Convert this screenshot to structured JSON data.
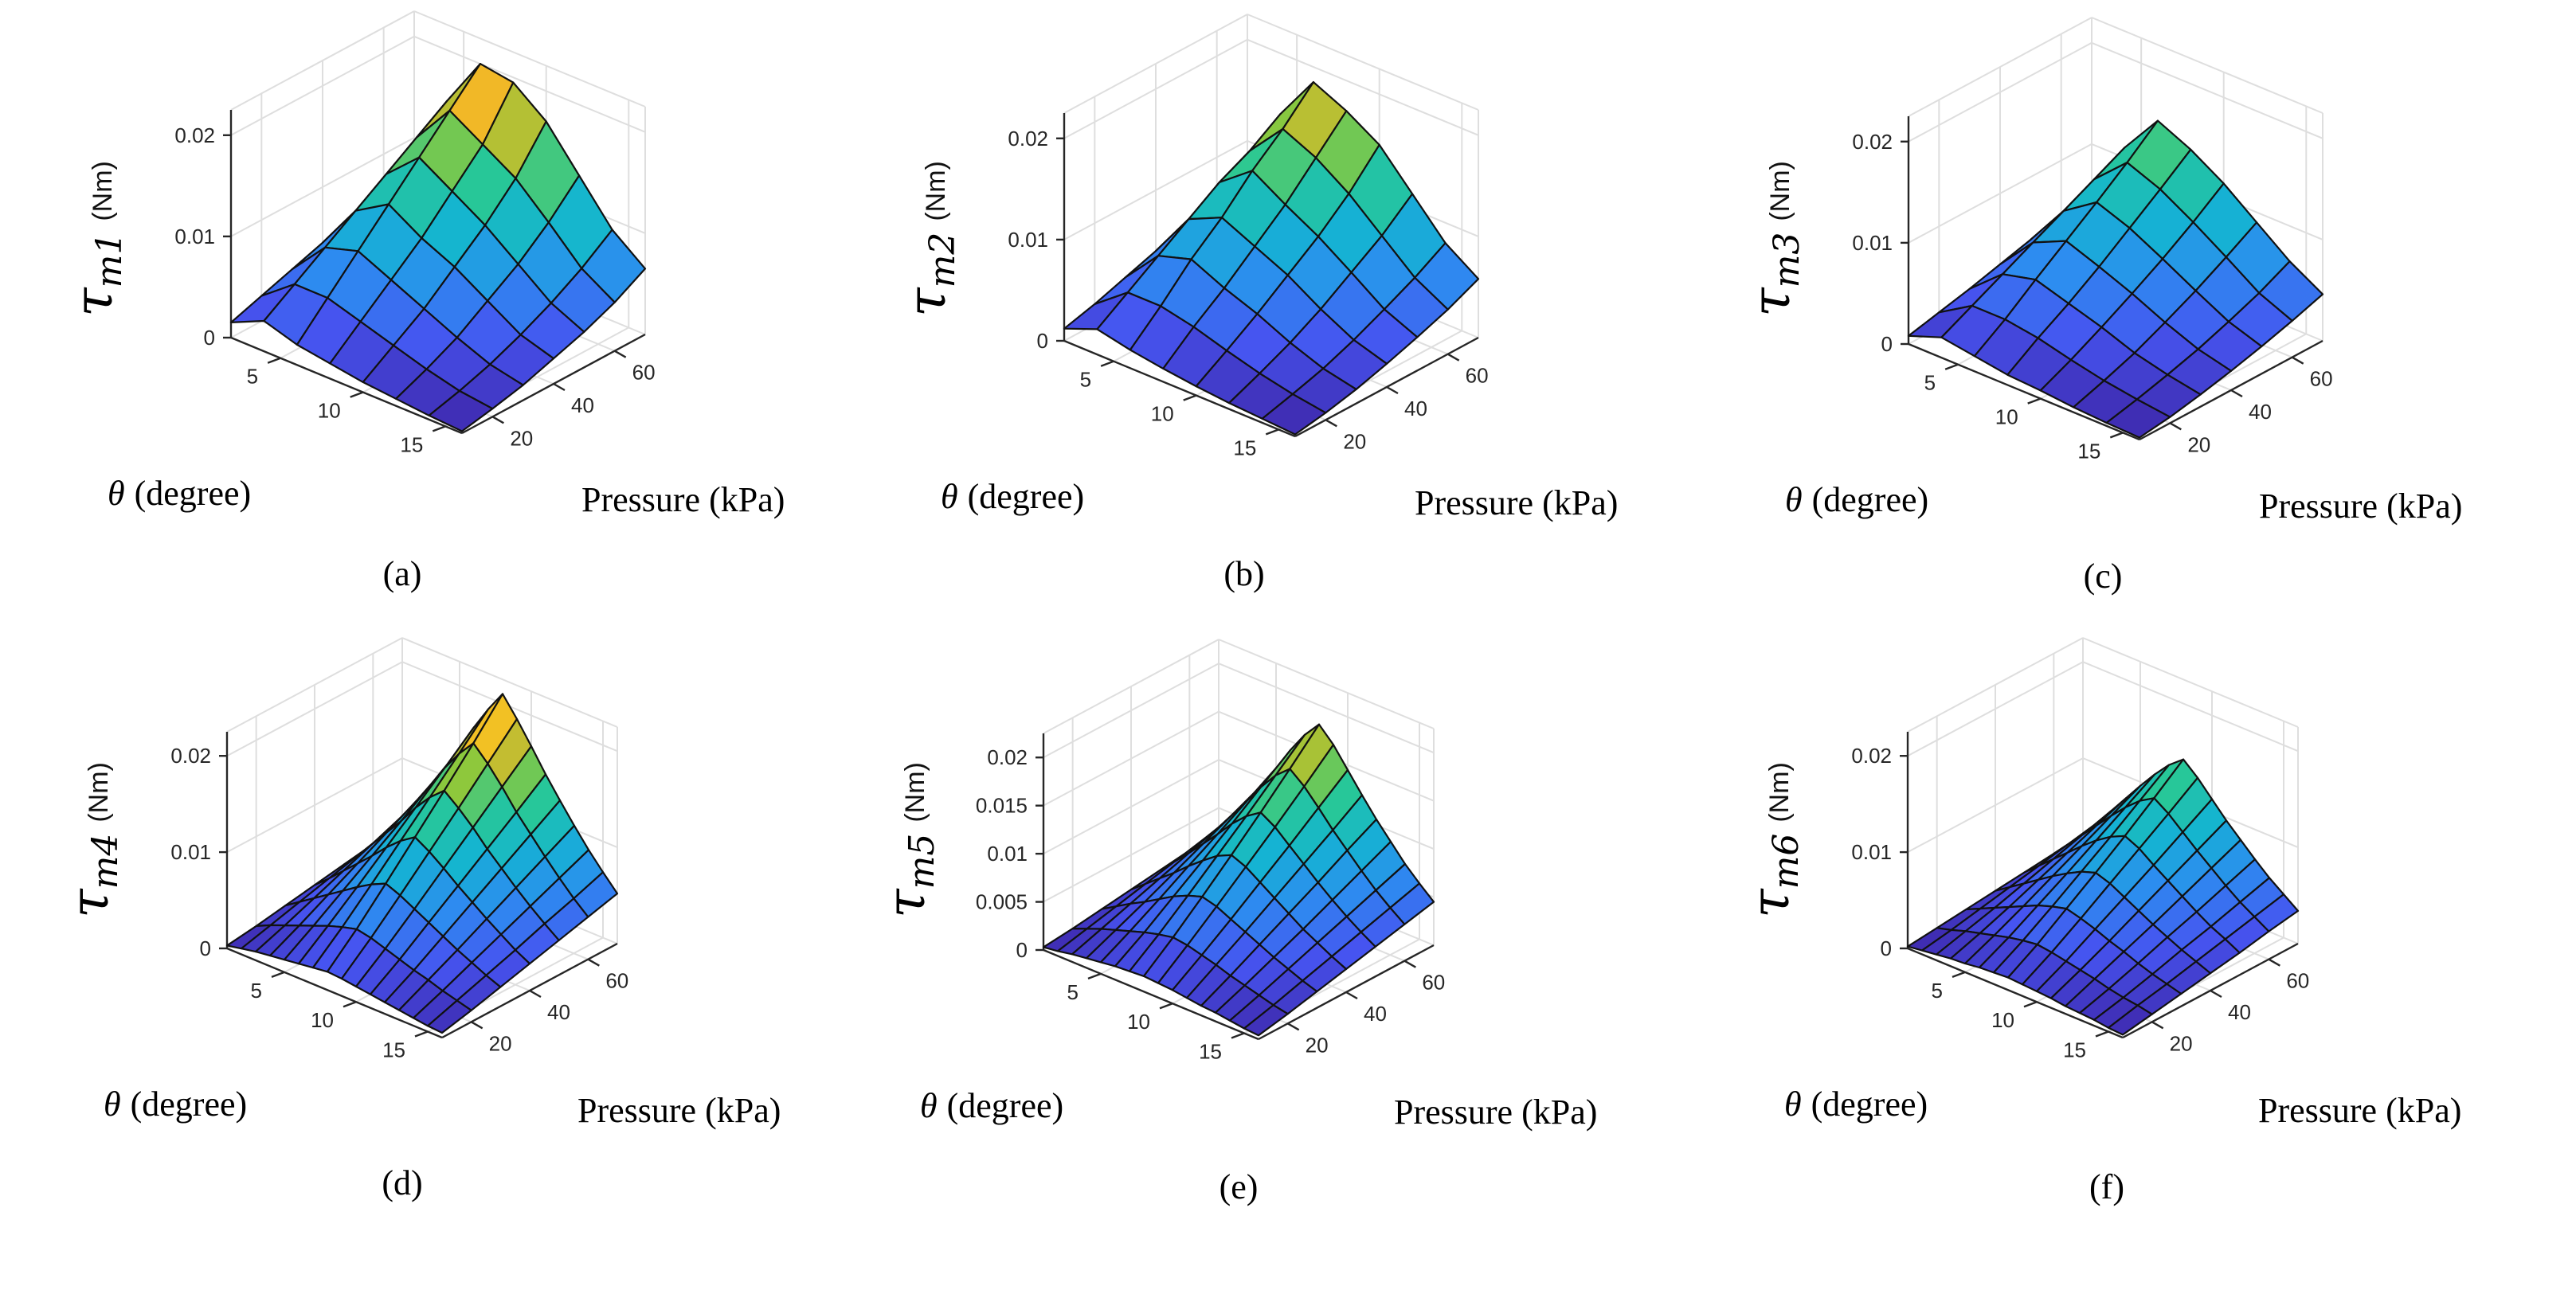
{
  "chart_data": [
    {
      "type": "surface",
      "panel": "a",
      "caption": "(a)",
      "zlabel": {
        "sym": "τ",
        "sub": "m1",
        "unit": "(Nm)"
      },
      "xlabel": {
        "sym": "θ",
        "text": "(degree)"
      },
      "ylabel": "Pressure (kPa)",
      "theta": [
        2,
        4,
        6,
        8,
        10,
        12,
        14,
        16
      ],
      "pressure": [
        10,
        20,
        30,
        40,
        50,
        60,
        70
      ],
      "zlim": [
        0,
        0.0225
      ],
      "theta_ticks": [
        5,
        10,
        15
      ],
      "pressure_ticks": [
        20,
        40,
        60
      ],
      "z_ticks": [
        {
          "v": 0,
          "label": "0"
        },
        {
          "v": 0.01,
          "label": "0.01"
        },
        {
          "v": 0.02,
          "label": "0.02"
        }
      ],
      "z": [
        [
          0.0015,
          0.0025,
          0.0035,
          0.0045,
          0.0055,
          0.0065,
          0.0075
        ],
        [
          0.003,
          0.005,
          0.007,
          0.009,
          0.011,
          0.013,
          0.015
        ],
        [
          0.002,
          0.005,
          0.008,
          0.011,
          0.014,
          0.017,
          0.02
        ],
        [
          0.0015,
          0.004,
          0.0065,
          0.009,
          0.012,
          0.015,
          0.0195
        ],
        [
          0.001,
          0.003,
          0.005,
          0.0075,
          0.01,
          0.013,
          0.017
        ],
        [
          0.0007,
          0.002,
          0.0035,
          0.0055,
          0.0075,
          0.01,
          0.013
        ],
        [
          0.0004,
          0.0012,
          0.0022,
          0.0035,
          0.005,
          0.0068,
          0.009
        ],
        [
          0.0002,
          0.0008,
          0.0015,
          0.0025,
          0.0035,
          0.0048,
          0.0065
        ]
      ]
    },
    {
      "type": "surface",
      "panel": "b",
      "caption": "(b)",
      "zlabel": {
        "sym": "τ",
        "sub": "m2",
        "unit": "(Nm)"
      },
      "xlabel": {
        "sym": "θ",
        "text": "(degree)"
      },
      "ylabel": "Pressure (kPa)",
      "theta": [
        2,
        4,
        6,
        8,
        10,
        12,
        14,
        16
      ],
      "pressure": [
        10,
        20,
        30,
        40,
        50,
        60,
        70
      ],
      "zlim": [
        0,
        0.0225
      ],
      "theta_ticks": [
        5,
        10,
        15
      ],
      "pressure_ticks": [
        20,
        40,
        60
      ],
      "z_ticks": [
        {
          "v": 0,
          "label": "0"
        },
        {
          "v": 0.01,
          "label": "0.01"
        },
        {
          "v": 0.02,
          "label": "0.02"
        }
      ],
      "z": [
        [
          0.0012,
          0.002,
          0.003,
          0.004,
          0.005,
          0.006,
          0.007
        ],
        [
          0.0025,
          0.0045,
          0.0065,
          0.0085,
          0.0105,
          0.012,
          0.014
        ],
        [
          0.0018,
          0.0045,
          0.0075,
          0.01,
          0.013,
          0.0155,
          0.0185
        ],
        [
          0.0013,
          0.0038,
          0.006,
          0.0085,
          0.011,
          0.014,
          0.017
        ],
        [
          0.0009,
          0.0028,
          0.0048,
          0.007,
          0.0092,
          0.0118,
          0.015
        ],
        [
          0.0006,
          0.0019,
          0.0033,
          0.005,
          0.007,
          0.009,
          0.0115
        ],
        [
          0.0004,
          0.0012,
          0.0021,
          0.0033,
          0.0047,
          0.0062,
          0.008
        ],
        [
          0.0002,
          0.0007,
          0.0014,
          0.0023,
          0.0033,
          0.0044,
          0.0058
        ]
      ]
    },
    {
      "type": "surface",
      "panel": "c",
      "caption": "(c)",
      "zlabel": {
        "sym": "τ",
        "sub": "m3",
        "unit": "(Nm)"
      },
      "xlabel": {
        "sym": "θ",
        "text": "(degree)"
      },
      "ylabel": "Pressure (kPa)",
      "theta": [
        2,
        4,
        6,
        8,
        10,
        12,
        14,
        16
      ],
      "pressure": [
        10,
        20,
        30,
        40,
        50,
        60,
        70
      ],
      "zlim": [
        0,
        0.0225
      ],
      "theta_ticks": [
        5,
        10,
        15
      ],
      "pressure_ticks": [
        20,
        40,
        60
      ],
      "z_ticks": [
        {
          "v": 0,
          "label": "0"
        },
        {
          "v": 0.01,
          "label": "0.01"
        },
        {
          "v": 0.02,
          "label": "0.02"
        }
      ],
      "z": [
        [
          0.0008,
          0.0015,
          0.0022,
          0.003,
          0.0038,
          0.0045,
          0.0052
        ],
        [
          0.002,
          0.0035,
          0.005,
          0.0065,
          0.008,
          0.0095,
          0.011
        ],
        [
          0.0015,
          0.0035,
          0.0058,
          0.008,
          0.0102,
          0.0125,
          0.015
        ],
        [
          0.001,
          0.003,
          0.0048,
          0.0068,
          0.009,
          0.0112,
          0.0135
        ],
        [
          0.0008,
          0.0022,
          0.0038,
          0.0055,
          0.0073,
          0.0093,
          0.0115
        ],
        [
          0.0005,
          0.0015,
          0.0026,
          0.004,
          0.0055,
          0.0072,
          0.009
        ],
        [
          0.0003,
          0.001,
          0.0018,
          0.0027,
          0.0038,
          0.005,
          0.0065
        ],
        [
          0.0002,
          0.0006,
          0.0012,
          0.0019,
          0.0027,
          0.0036,
          0.0046
        ]
      ]
    },
    {
      "type": "surface",
      "panel": "d",
      "caption": "(d)",
      "zlabel": {
        "sym": "τ",
        "sub": "m4",
        "unit": "(Nm)"
      },
      "xlabel": {
        "sym": "θ",
        "text": "(degree)"
      },
      "ylabel": "Pressure (kPa)",
      "theta": [
        1,
        2,
        3,
        4,
        5,
        6,
        7,
        8,
        9,
        10,
        11,
        12,
        13,
        14,
        15,
        16
      ],
      "pressure": [
        10,
        20,
        30,
        40,
        50,
        60,
        70
      ],
      "zlim": [
        0,
        0.0225
      ],
      "theta_ticks": [
        5,
        10,
        15
      ],
      "pressure_ticks": [
        20,
        40,
        60
      ],
      "z_ticks": [
        {
          "v": 0,
          "label": "0"
        },
        {
          "v": 0.01,
          "label": "0.01"
        },
        {
          "v": 0.02,
          "label": "0.02"
        }
      ],
      "z": [
        [
          0.0003,
          0.0007,
          0.0012,
          0.0017,
          0.0022,
          0.0027,
          0.0032
        ],
        [
          0.0006,
          0.0014,
          0.0022,
          0.003,
          0.0038,
          0.0046,
          0.0054
        ],
        [
          0.0009,
          0.002,
          0.0032,
          0.0044,
          0.0056,
          0.0068,
          0.008
        ],
        [
          0.0011,
          0.0026,
          0.0042,
          0.0058,
          0.0074,
          0.009,
          0.0106
        ],
        [
          0.0013,
          0.0032,
          0.0052,
          0.0072,
          0.0092,
          0.0113,
          0.0134
        ],
        [
          0.0015,
          0.0038,
          0.0062,
          0.0087,
          0.0112,
          0.0137,
          0.0163
        ],
        [
          0.0017,
          0.0043,
          0.0071,
          0.01,
          0.0129,
          0.0158,
          0.0188
        ],
        [
          0.0019,
          0.0047,
          0.0078,
          0.011,
          0.0142,
          0.0175,
          0.021
        ],
        [
          0.0018,
          0.0044,
          0.0072,
          0.0101,
          0.013,
          0.016,
          0.019
        ],
        [
          0.0016,
          0.0039,
          0.0064,
          0.009,
          0.0116,
          0.0142,
          0.0168
        ],
        [
          0.0014,
          0.0034,
          0.0056,
          0.0078,
          0.01,
          0.0122,
          0.0145
        ],
        [
          0.0012,
          0.0029,
          0.0048,
          0.0067,
          0.0086,
          0.0105,
          0.0124
        ],
        [
          0.001,
          0.0025,
          0.004,
          0.0056,
          0.0072,
          0.0088,
          0.0104
        ],
        [
          0.0008,
          0.002,
          0.0033,
          0.0046,
          0.0059,
          0.0072,
          0.0085
        ],
        [
          0.0006,
          0.0016,
          0.0026,
          0.0036,
          0.0047,
          0.0057,
          0.0068
        ],
        [
          0.0005,
          0.0012,
          0.002,
          0.0028,
          0.0036,
          0.0044,
          0.0052
        ]
      ]
    },
    {
      "type": "surface",
      "panel": "e",
      "caption": "(e)",
      "zlabel": {
        "sym": "τ",
        "sub": "m5",
        "unit": "(Nm)"
      },
      "xlabel": {
        "sym": "θ",
        "text": "(degree)"
      },
      "ylabel": "Pressure (kPa)",
      "theta": [
        1,
        2,
        3,
        4,
        5,
        6,
        7,
        8,
        9,
        10,
        11,
        12,
        13,
        14,
        15,
        16
      ],
      "pressure": [
        10,
        20,
        30,
        40,
        50,
        60,
        70
      ],
      "zlim": [
        0,
        0.0225
      ],
      "theta_ticks": [
        5,
        10,
        15
      ],
      "pressure_ticks": [
        20,
        40,
        60
      ],
      "z_ticks": [
        {
          "v": 0,
          "label": "0"
        },
        {
          "v": 0.005,
          "label": "0.005"
        },
        {
          "v": 0.01,
          "label": "0.01"
        },
        {
          "v": 0.015,
          "label": "0.015"
        },
        {
          "v": 0.02,
          "label": "0.02"
        }
      ],
      "z": [
        [
          0.0003,
          0.0006,
          0.001,
          0.0014,
          0.0018,
          0.0022,
          0.0026
        ],
        [
          0.0005,
          0.0012,
          0.0019,
          0.0026,
          0.0033,
          0.004,
          0.0047
        ],
        [
          0.0008,
          0.0018,
          0.0028,
          0.0038,
          0.0048,
          0.0058,
          0.0069
        ],
        [
          0.001,
          0.0023,
          0.0036,
          0.005,
          0.0064,
          0.0078,
          0.0092
        ],
        [
          0.0012,
          0.0028,
          0.0045,
          0.0063,
          0.008,
          0.0098,
          0.0116
        ],
        [
          0.0014,
          0.0033,
          0.0054,
          0.0075,
          0.0097,
          0.0119,
          0.0141
        ],
        [
          0.0015,
          0.0037,
          0.0061,
          0.0086,
          0.0111,
          0.0137,
          0.0163
        ],
        [
          0.0016,
          0.004,
          0.0066,
          0.0093,
          0.0121,
          0.015,
          0.018
        ],
        [
          0.0015,
          0.0038,
          0.0062,
          0.0087,
          0.0112,
          0.0138,
          0.0165
        ],
        [
          0.0014,
          0.0034,
          0.0055,
          0.0077,
          0.0099,
          0.0122,
          0.0145
        ],
        [
          0.0012,
          0.003,
          0.0048,
          0.0067,
          0.0086,
          0.0105,
          0.0125
        ],
        [
          0.001,
          0.0025,
          0.0041,
          0.0057,
          0.0073,
          0.009,
          0.0106
        ],
        [
          0.0009,
          0.0021,
          0.0034,
          0.0047,
          0.0061,
          0.0075,
          0.0089
        ],
        [
          0.0007,
          0.0017,
          0.0028,
          0.0039,
          0.005,
          0.0061,
          0.0072
        ],
        [
          0.0005,
          0.0013,
          0.0022,
          0.0031,
          0.004,
          0.0049,
          0.0058
        ],
        [
          0.0004,
          0.001,
          0.0017,
          0.0024,
          0.0031,
          0.0038,
          0.0045
        ]
      ]
    },
    {
      "type": "surface",
      "panel": "f",
      "caption": "(f)",
      "zlabel": {
        "sym": "τ",
        "sub": "m6",
        "unit": "(Nm)"
      },
      "xlabel": {
        "sym": "θ",
        "text": "(degree)"
      },
      "ylabel": "Pressure (kPa)",
      "theta": [
        1,
        2,
        3,
        4,
        5,
        6,
        7,
        8,
        9,
        10,
        11,
        12,
        13,
        14,
        15,
        16
      ],
      "pressure": [
        10,
        20,
        30,
        40,
        50,
        60,
        70
      ],
      "zlim": [
        0,
        0.0225
      ],
      "theta_ticks": [
        5,
        10,
        15
      ],
      "pressure_ticks": [
        20,
        40,
        60
      ],
      "z_ticks": [
        {
          "v": 0,
          "label": "0"
        },
        {
          "v": 0.01,
          "label": "0.01"
        },
        {
          "v": 0.02,
          "label": "0.02"
        }
      ],
      "z": [
        [
          0.0002,
          0.0005,
          0.0008,
          0.0011,
          0.0014,
          0.0017,
          0.002
        ],
        [
          0.0004,
          0.0009,
          0.0015,
          0.0021,
          0.0027,
          0.0033,
          0.0039
        ],
        [
          0.0006,
          0.0014,
          0.0022,
          0.0031,
          0.004,
          0.0049,
          0.0058
        ],
        [
          0.0008,
          0.0018,
          0.0029,
          0.0041,
          0.0053,
          0.0065,
          0.0077
        ],
        [
          0.0009,
          0.0022,
          0.0036,
          0.0051,
          0.0066,
          0.0081,
          0.0096
        ],
        [
          0.0011,
          0.0026,
          0.0043,
          0.006,
          0.0078,
          0.0096,
          0.0114
        ],
        [
          0.0012,
          0.0029,
          0.0048,
          0.0068,
          0.0088,
          0.0109,
          0.013
        ],
        [
          0.0013,
          0.0031,
          0.0052,
          0.0073,
          0.0095,
          0.0118,
          0.0142
        ],
        [
          0.0012,
          0.0029,
          0.0048,
          0.0068,
          0.0088,
          0.0108,
          0.0129
        ],
        [
          0.0011,
          0.0026,
          0.0043,
          0.006,
          0.0077,
          0.0095,
          0.0113
        ],
        [
          0.001,
          0.0023,
          0.0037,
          0.0052,
          0.0067,
          0.0082,
          0.0097
        ],
        [
          0.0008,
          0.002,
          0.0032,
          0.0044,
          0.0057,
          0.007,
          0.0083
        ],
        [
          0.0007,
          0.0016,
          0.0026,
          0.0037,
          0.0047,
          0.0058,
          0.0069
        ],
        [
          0.0006,
          0.0013,
          0.0021,
          0.003,
          0.0038,
          0.0047,
          0.0056
        ],
        [
          0.0004,
          0.0011,
          0.0017,
          0.0024,
          0.0031,
          0.0038,
          0.0045
        ],
        [
          0.0003,
          0.0008,
          0.0013,
          0.0018,
          0.0023,
          0.0029,
          0.0034
        ]
      ]
    }
  ]
}
